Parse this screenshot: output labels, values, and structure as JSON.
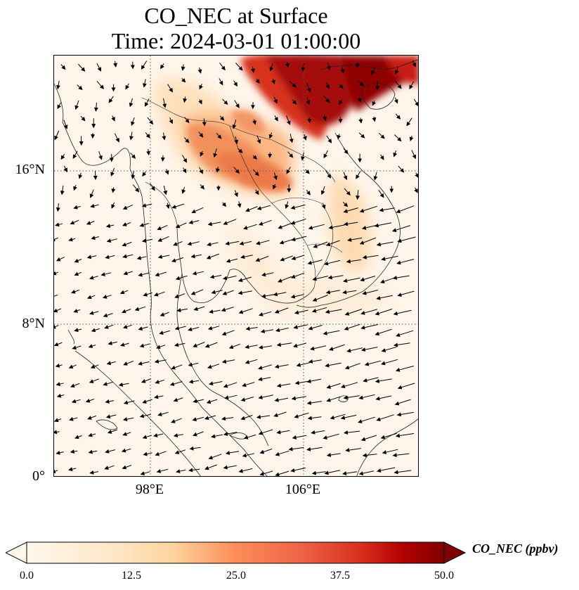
{
  "title": {
    "line1": "CO_NEC at Surface",
    "line2": "Time: 2024-03-01 01:00:00"
  },
  "map": {
    "latitude_labels": [
      "16°N",
      "8°N",
      "0°"
    ],
    "longitude_labels": [
      "98°E",
      "106°E"
    ],
    "extent": {
      "lon_min": 93,
      "lon_max": 112,
      "lat_min": 0,
      "lat_max": 22
    },
    "gridlines": "dotted",
    "field_colormap": "OrRd (light cream to dark red)",
    "overlay": "wind vectors (arrows)"
  },
  "colorbar": {
    "label": "CO_NEC (ppbv)",
    "ticks": [
      "0.0",
      "12.5",
      "25.0",
      "37.5",
      "50.0"
    ],
    "min": 0,
    "max": 50,
    "extend": "both",
    "colors": {
      "low": "#fff7ec",
      "mid_low": "#fdd49e",
      "mid": "#fc8d59",
      "mid_high": "#d7301f",
      "high": "#7f0000"
    }
  }
}
